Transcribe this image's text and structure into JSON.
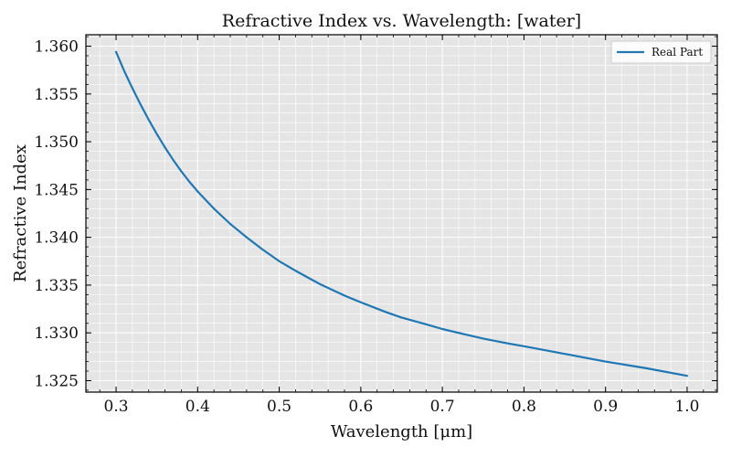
{
  "chart_data": {
    "type": "line",
    "title": "Refractive Index vs. Wavelength: [water]",
    "xlabel": "Wavelength [μm]",
    "ylabel": "Refractive Index",
    "xlim": [
      0.263,
      1.037
    ],
    "ylim": [
      1.3238,
      1.3612
    ],
    "xticks": [
      "0.3",
      "0.4",
      "0.5",
      "0.6",
      "0.7",
      "0.8",
      "0.9",
      "1.0"
    ],
    "yticks": [
      "1.325",
      "1.330",
      "1.335",
      "1.340",
      "1.345",
      "1.350",
      "1.355",
      "1.360"
    ],
    "grid": true,
    "legend_position": "top-right",
    "series": [
      {
        "name": "Real Part",
        "color": "#1f77b4",
        "x": [
          0.3,
          0.31,
          0.32,
          0.33,
          0.34,
          0.35,
          0.36,
          0.37,
          0.38,
          0.39,
          0.4,
          0.42,
          0.44,
          0.46,
          0.48,
          0.5,
          0.52,
          0.55,
          0.58,
          0.6,
          0.63,
          0.65,
          0.68,
          0.7,
          0.73,
          0.75,
          0.78,
          0.8,
          0.85,
          0.9,
          0.95,
          1.0
        ],
        "y": [
          1.3594,
          1.3574,
          1.3556,
          1.3539,
          1.3523,
          1.3508,
          1.3494,
          1.3481,
          1.3469,
          1.3458,
          1.3448,
          1.343,
          1.3414,
          1.34,
          1.3387,
          1.3375,
          1.3365,
          1.3351,
          1.3339,
          1.3332,
          1.3322,
          1.3316,
          1.3309,
          1.3304,
          1.3298,
          1.3294,
          1.3289,
          1.3286,
          1.3278,
          1.327,
          1.3263,
          1.3255
        ]
      }
    ]
  }
}
